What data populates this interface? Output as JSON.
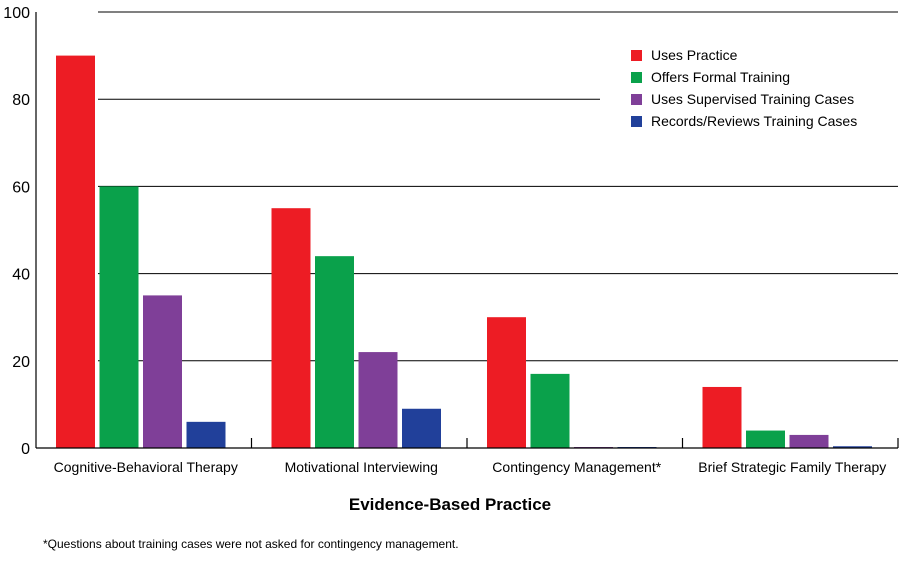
{
  "chart_data": {
    "type": "bar",
    "xlabel": "Evidence-Based Practice",
    "ylabel": "",
    "ylim": [
      0,
      100
    ],
    "yticks": [
      0,
      20,
      40,
      60,
      80,
      100
    ],
    "grid": true,
    "legend_position": "top-right",
    "categories": [
      "Cognitive-Behavioral Therapy",
      "Motivational Interviewing",
      "Contingency Management*",
      "Brief Strategic Family Therapy"
    ],
    "series": [
      {
        "name": "Uses Practice",
        "color": "#ed1c24",
        "values": [
          90,
          55,
          30,
          14
        ]
      },
      {
        "name": "Offers Formal Training",
        "color": "#0aa14b",
        "values": [
          60,
          44,
          17,
          4
        ]
      },
      {
        "name": "Uses Supervised Training Cases",
        "color": "#7f3f98",
        "values": [
          35,
          22,
          0,
          3
        ]
      },
      {
        "name": "Records/Reviews Training Cases",
        "color": "#21409a",
        "values": [
          6,
          9,
          0,
          0.4
        ]
      }
    ],
    "footnote": "*Questions about training cases were not asked for contingency management."
  }
}
